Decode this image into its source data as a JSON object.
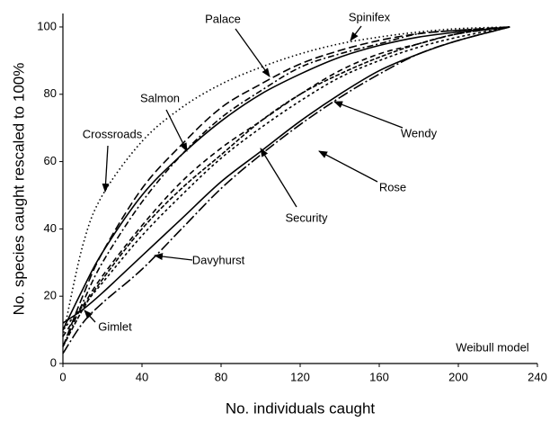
{
  "chart_data": {
    "type": "line",
    "x_label": "No. individuals caught",
    "y_label": "No. species caught rescaled to 100%",
    "annotation": "Weibull model",
    "x": [
      0,
      10,
      20,
      40,
      60,
      80,
      100,
      120,
      140,
      160,
      180,
      200,
      226
    ],
    "series": [
      {
        "name": "Crossroads",
        "color": "#000000",
        "dash": "1.5,3",
        "values": [
          8,
          35,
          50,
          66,
          76,
          83,
          88,
          92,
          95,
          97,
          98.5,
          99.5,
          100
        ]
      },
      {
        "name": "Palace",
        "color": "#000000",
        "dash": "9,4",
        "values": [
          5,
          20,
          33,
          52,
          65,
          76,
          83,
          89,
          93,
          96,
          98,
          99,
          100
        ]
      },
      {
        "name": "Salmon",
        "color": "#000000",
        "dash": "none",
        "values": [
          10,
          22,
          33,
          50,
          62,
          72,
          80,
          86,
          91,
          94.5,
          97,
          98.5,
          100
        ]
      },
      {
        "name": "Spinifex",
        "color": "#000000",
        "dash": "7,3,2,3",
        "values": [
          5,
          18,
          30,
          48,
          62,
          73,
          81,
          88,
          92,
          95,
          98,
          99,
          100
        ]
      },
      {
        "name": "Wendy",
        "color": "#000000",
        "dash": "6,4",
        "values": [
          8,
          17,
          26,
          41,
          54,
          64,
          72,
          80,
          87,
          92,
          95,
          98,
          100
        ]
      },
      {
        "name": "Security",
        "color": "#000000",
        "dash": "3,3",
        "values": [
          10,
          17,
          24,
          38,
          50,
          61,
          70,
          78,
          85,
          90,
          94,
          97,
          100
        ]
      },
      {
        "name": "Rose",
        "color": "#000000",
        "dash": "none",
        "values": [
          12,
          16,
          21,
          32,
          43,
          54,
          63,
          72,
          80,
          87,
          92,
          96,
          100
        ]
      },
      {
        "name": "Davyhurst",
        "color": "#000000",
        "dash": "12,3,2,3",
        "values": [
          3,
          12,
          18,
          28,
          40,
          52,
          62,
          71,
          79,
          86,
          92,
          96,
          100
        ]
      },
      {
        "name": "Gimlet",
        "color": "#000000",
        "dash": "5,2",
        "values": [
          5,
          16,
          25,
          40,
          52,
          62,
          72,
          80,
          86,
          91,
          95,
          98,
          100
        ]
      }
    ],
    "xlim": [
      0,
      240
    ],
    "xticks": [
      0,
      40,
      80,
      120,
      160,
      200,
      240
    ],
    "ylim": [
      0,
      104
    ],
    "yticks": [
      0,
      20,
      40,
      60,
      80,
      100
    ],
    "grid": false
  }
}
